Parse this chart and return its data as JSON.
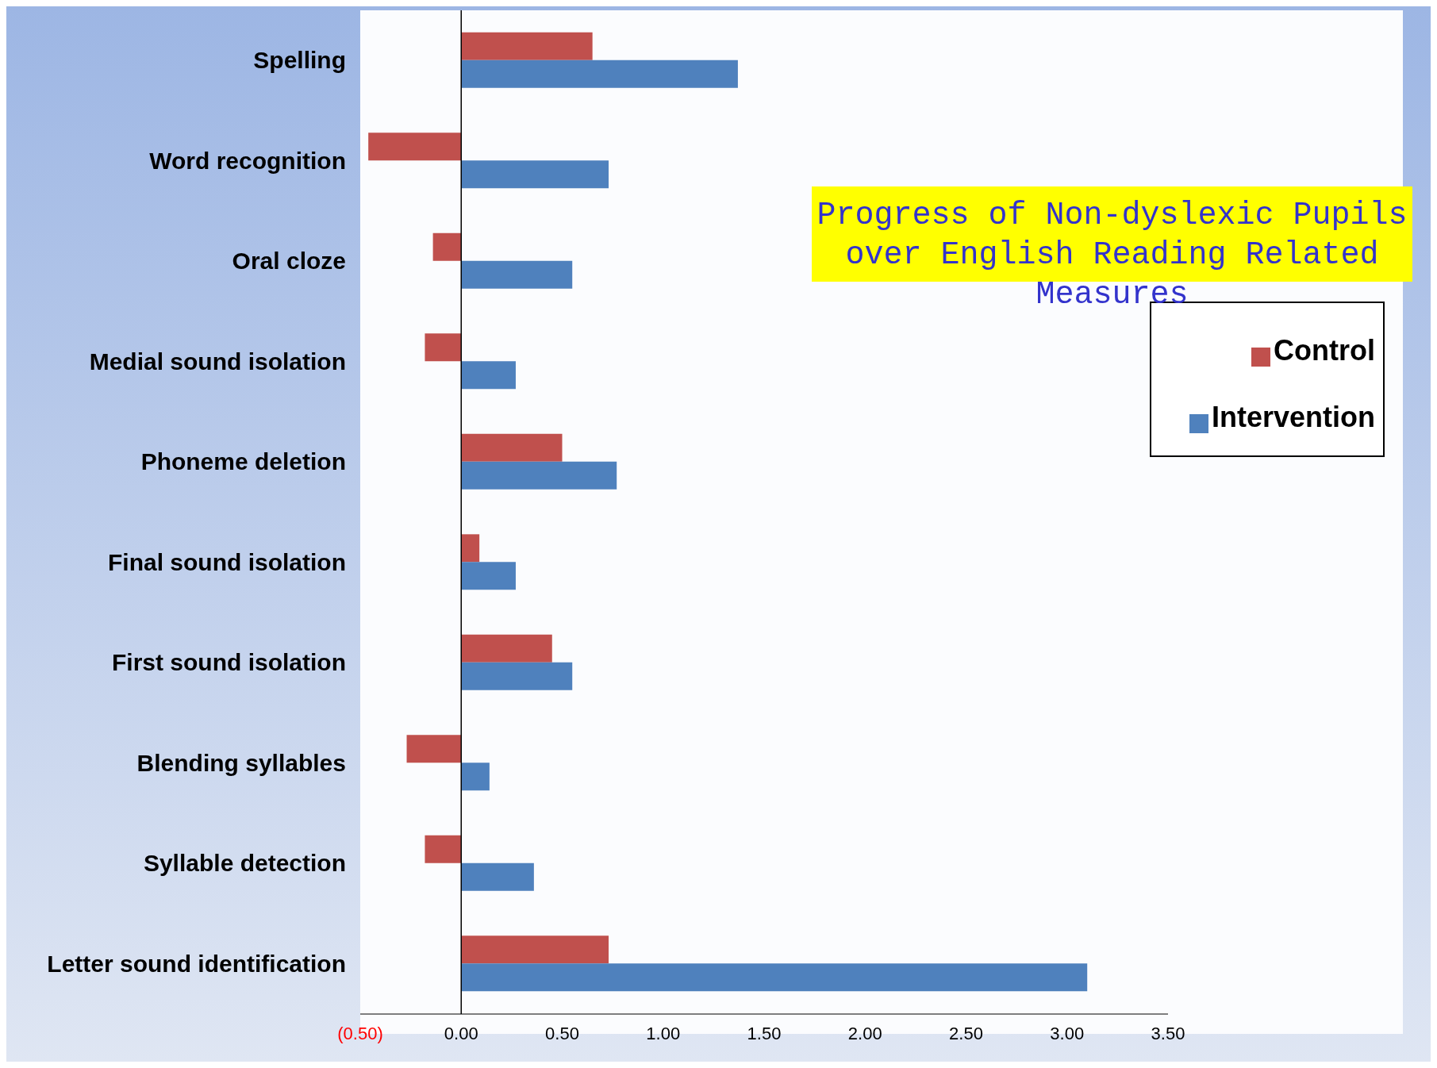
{
  "chart_data": {
    "type": "bar",
    "orientation": "horizontal",
    "title": "Progress of Non-dyslexic Pupils over English Reading Related Measures",
    "categories": [
      "Spelling",
      "Word recognition",
      "Oral cloze",
      "Medial sound isolation",
      "Phoneme deletion",
      "Final sound isolation",
      "First sound isolation",
      "Blending syllables",
      "Syllable detection",
      "Letter sound identification"
    ],
    "series": [
      {
        "name": "Control",
        "color": "#c0504d",
        "values": [
          0.65,
          -0.46,
          -0.14,
          -0.18,
          0.5,
          0.09,
          0.45,
          -0.27,
          -0.18,
          0.73
        ]
      },
      {
        "name": "Intervention",
        "color": "#4f81bd",
        "values": [
          1.37,
          0.73,
          0.55,
          0.27,
          0.77,
          0.27,
          0.55,
          0.14,
          0.36,
          3.1
        ]
      }
    ],
    "xlim": [
      -0.5,
      3.5
    ],
    "xticks": [
      {
        "value": -0.5,
        "label": "(0.50)"
      },
      {
        "value": 0,
        "label": "0.00"
      },
      {
        "value": 0.5,
        "label": "0.50"
      },
      {
        "value": 1,
        "label": "1.00"
      },
      {
        "value": 1.5,
        "label": "1.50"
      },
      {
        "value": 2,
        "label": "2.00"
      },
      {
        "value": 2.5,
        "label": "2.50"
      },
      {
        "value": 3,
        "label": "3.00"
      },
      {
        "value": 3.5,
        "label": "3.50"
      }
    ],
    "ref_lines": [
      {
        "axis": "x",
        "value": 0,
        "color": "#000000"
      }
    ],
    "grid": false,
    "legend": "top right"
  }
}
